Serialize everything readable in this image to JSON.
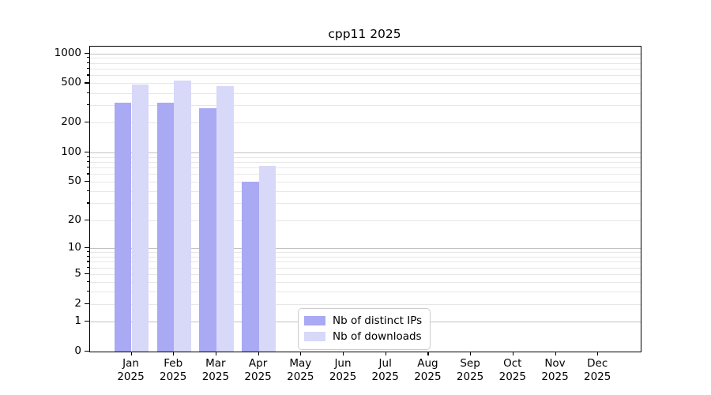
{
  "chart_data": {
    "type": "bar",
    "title": "cpp11 2025",
    "categories": [
      "Jan",
      "Feb",
      "Mar",
      "Apr",
      "May",
      "Jun",
      "Jul",
      "Aug",
      "Sep",
      "Oct",
      "Nov",
      "Dec"
    ],
    "category_year": "2025",
    "series": [
      {
        "name": "Nb of distinct IPs",
        "color": "#a9a9f4",
        "values": [
          318,
          320,
          278,
          50,
          null,
          null,
          null,
          null,
          null,
          null,
          null,
          null
        ]
      },
      {
        "name": "Nb of downloads",
        "color": "#d8d8f9",
        "values": [
          488,
          528,
          470,
          73,
          null,
          null,
          null,
          null,
          null,
          null,
          null,
          null
        ]
      }
    ],
    "xlabel": "",
    "ylabel": "",
    "y_axis": {
      "scale": "log1p",
      "tick_labels": [
        "0",
        "1",
        "2",
        "5",
        "10",
        "20",
        "50",
        "100",
        "200",
        "500",
        "1000"
      ],
      "tick_values": [
        0,
        1,
        2,
        5,
        10,
        20,
        50,
        100,
        200,
        500,
        1000
      ],
      "minor_tick_values": [
        3,
        4,
        6,
        7,
        8,
        9,
        30,
        40,
        60,
        70,
        80,
        90,
        300,
        400,
        600,
        700,
        800,
        900
      ],
      "major_grid_values": [
        1,
        10,
        100,
        1000
      ],
      "ylim": [
        0,
        1180
      ]
    },
    "grid": true,
    "legend_position": "lower-center-inside"
  },
  "colors": {
    "major_grid": "#c2c2c2",
    "minor_grid": "#e7e7e7",
    "axis": "#000000"
  }
}
